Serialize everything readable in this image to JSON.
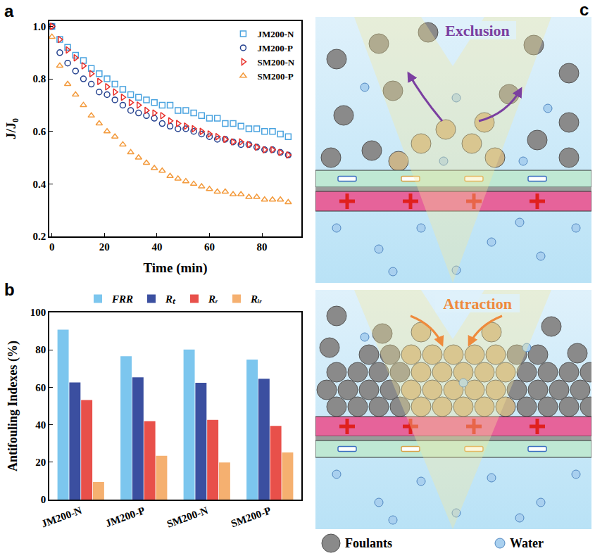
{
  "chart_data": [
    {
      "type": "scatter",
      "panel": "a",
      "x": [
        0,
        3,
        6,
        9,
        12,
        15,
        18,
        21,
        24,
        27,
        30,
        33,
        36,
        39,
        42,
        45,
        48,
        51,
        54,
        57,
        60,
        63,
        66,
        69,
        72,
        75,
        78,
        81,
        84,
        87,
        90
      ],
      "series": [
        {
          "name": "JM200-N",
          "color": "#4aa3df",
          "marker": "square-open",
          "values": [
            1.0,
            0.95,
            0.92,
            0.89,
            0.87,
            0.84,
            0.82,
            0.8,
            0.78,
            0.76,
            0.74,
            0.73,
            0.72,
            0.71,
            0.7,
            0.7,
            0.68,
            0.68,
            0.67,
            0.66,
            0.65,
            0.65,
            0.63,
            0.63,
            0.62,
            0.61,
            0.61,
            0.6,
            0.6,
            0.59,
            0.58
          ]
        },
        {
          "name": "JM200-P",
          "color": "#23408e",
          "marker": "circle-open",
          "values": [
            1.0,
            0.9,
            0.86,
            0.83,
            0.8,
            0.78,
            0.75,
            0.74,
            0.72,
            0.7,
            0.68,
            0.67,
            0.66,
            0.65,
            0.63,
            0.62,
            0.61,
            0.61,
            0.6,
            0.59,
            0.58,
            0.57,
            0.57,
            0.56,
            0.55,
            0.55,
            0.54,
            0.53,
            0.53,
            0.52,
            0.51
          ]
        },
        {
          "name": "SM200-N",
          "color": "#e8302a",
          "marker": "triangle-right-open",
          "values": [
            1.0,
            0.95,
            0.91,
            0.88,
            0.85,
            0.82,
            0.79,
            0.77,
            0.75,
            0.73,
            0.71,
            0.7,
            0.68,
            0.67,
            0.66,
            0.64,
            0.63,
            0.62,
            0.61,
            0.6,
            0.59,
            0.58,
            0.57,
            0.56,
            0.56,
            0.55,
            0.54,
            0.53,
            0.53,
            0.52,
            0.51
          ]
        },
        {
          "name": "SM200-P",
          "color": "#f39a3c",
          "marker": "triangle-up-open",
          "values": [
            0.96,
            0.85,
            0.78,
            0.74,
            0.7,
            0.66,
            0.63,
            0.6,
            0.58,
            0.55,
            0.52,
            0.5,
            0.48,
            0.46,
            0.45,
            0.43,
            0.42,
            0.41,
            0.4,
            0.39,
            0.38,
            0.37,
            0.37,
            0.36,
            0.36,
            0.35,
            0.35,
            0.34,
            0.34,
            0.34,
            0.33
          ]
        }
      ],
      "x_label": "Time (min)",
      "y_label": "J/J₀",
      "xlim": [
        -1,
        95
      ],
      "xticks": [
        0,
        20,
        40,
        60,
        80
      ],
      "ylim": [
        0.2,
        1.02
      ],
      "yticks": [
        0.2,
        0.4,
        0.6,
        0.8,
        {
          "value": 1,
          "label": "1.0"
        }
      ],
      "legend": "upper right",
      "grid": false
    },
    {
      "type": "bar",
      "panel": "b",
      "categories": [
        "JM200-N",
        "JM200-P",
        "SM200-N",
        "SM200-P"
      ],
      "series": [
        {
          "name": "FRR",
          "color": "#7cc6ee",
          "values": [
            90.8,
            76.6,
            80.2,
            74.8
          ]
        },
        {
          "name": "Rₜ",
          "color": "#3b4fa0",
          "values": [
            62.6,
            65.3,
            62.4,
            64.6
          ]
        },
        {
          "name": "Rᵣ",
          "color": "#e8504a",
          "values": [
            53.2,
            41.9,
            42.6,
            39.4
          ]
        },
        {
          "name": "Rᵢᵣ",
          "color": "#f5b070",
          "values": [
            9.4,
            23.4,
            19.8,
            25.2
          ]
        }
      ],
      "y_label": "Antifouling Indexes (%)",
      "ylim": [
        0,
        100
      ],
      "yticks": [
        0,
        20,
        40,
        60,
        80,
        100
      ],
      "legend": "top",
      "grid": false
    }
  ],
  "diagram": {
    "panel": "c",
    "top": {
      "label": "Exclusion"
    },
    "bottom": {
      "label": "Attraction"
    },
    "legend": [
      {
        "label": "Foulants"
      },
      {
        "label": "Water"
      }
    ]
  }
}
